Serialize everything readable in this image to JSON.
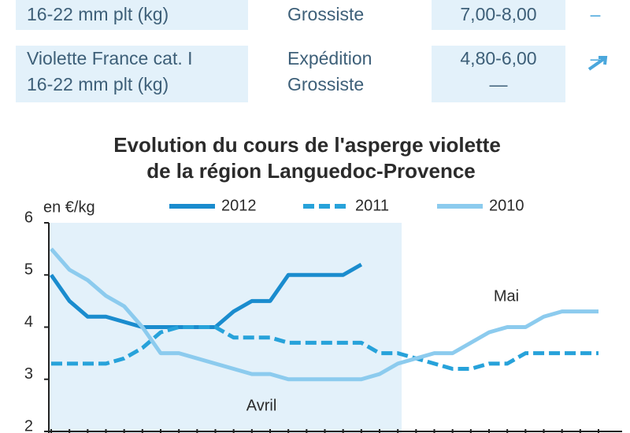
{
  "table": {
    "rows": [
      [
        [
          "16-22 mm plt (kg)"
        ],
        [
          "Grossiste"
        ],
        [
          "7,00-8,00"
        ],
        [
          "–"
        ]
      ],
      [
        [
          "Violette France cat. I",
          "16-22 mm plt (kg)"
        ],
        [
          "Expédition",
          "Grossiste"
        ],
        [
          "4,80-6,00",
          "—"
        ],
        [
          "",
          "–"
        ]
      ]
    ]
  },
  "chart_data": {
    "type": "line",
    "title": "Evolution du cours de l'asperge violette",
    "subtitle": "de la région Languedoc-Provence",
    "y_label": "en €/kg",
    "annotations": [
      "Avril",
      "Mai"
    ],
    "categories": [
      null,
      null,
      null,
      null,
      null,
      null,
      null,
      null,
      null,
      null,
      null,
      null,
      null,
      null,
      null,
      null,
      null,
      null,
      null,
      null,
      null,
      null,
      null,
      null,
      null,
      null,
      null,
      null,
      null,
      null,
      null
    ],
    "ylim": [
      2,
      6
    ],
    "yticks": [
      2,
      3,
      4,
      5,
      6
    ],
    "series": [
      {
        "name": "2012",
        "color": "#1a8cce",
        "dashed": false,
        "values": [
          5.0,
          4.5,
          4.2,
          4.2,
          4.1,
          4.0,
          4.0,
          4.0,
          4.0,
          4.0,
          4.3,
          4.5,
          4.5,
          5.0,
          5.0,
          5.0,
          5.0,
          5.2,
          null,
          null,
          null,
          null,
          null,
          null,
          null,
          null,
          null,
          null,
          null,
          null,
          null
        ]
      },
      {
        "name": "2011",
        "color": "#27a2da",
        "dashed": true,
        "values": [
          3.3,
          3.3,
          3.3,
          3.3,
          3.4,
          3.6,
          3.9,
          4.0,
          4.0,
          4.0,
          3.8,
          3.8,
          3.8,
          3.7,
          3.7,
          3.7,
          3.7,
          3.7,
          3.5,
          3.5,
          3.4,
          3.3,
          3.2,
          3.2,
          3.3,
          3.3,
          3.5,
          3.5,
          3.5,
          3.5,
          3.5
        ]
      },
      {
        "name": "2010",
        "color": "#8ccbee",
        "dashed": false,
        "values": [
          5.5,
          5.1,
          4.9,
          4.6,
          4.4,
          4.0,
          3.5,
          3.5,
          3.4,
          3.3,
          3.2,
          3.1,
          3.1,
          3.0,
          3.0,
          3.0,
          3.0,
          3.0,
          3.1,
          3.3,
          3.4,
          3.5,
          3.5,
          3.7,
          3.9,
          4.0,
          4.0,
          4.2,
          4.3,
          4.3,
          4.3
        ]
      }
    ]
  }
}
